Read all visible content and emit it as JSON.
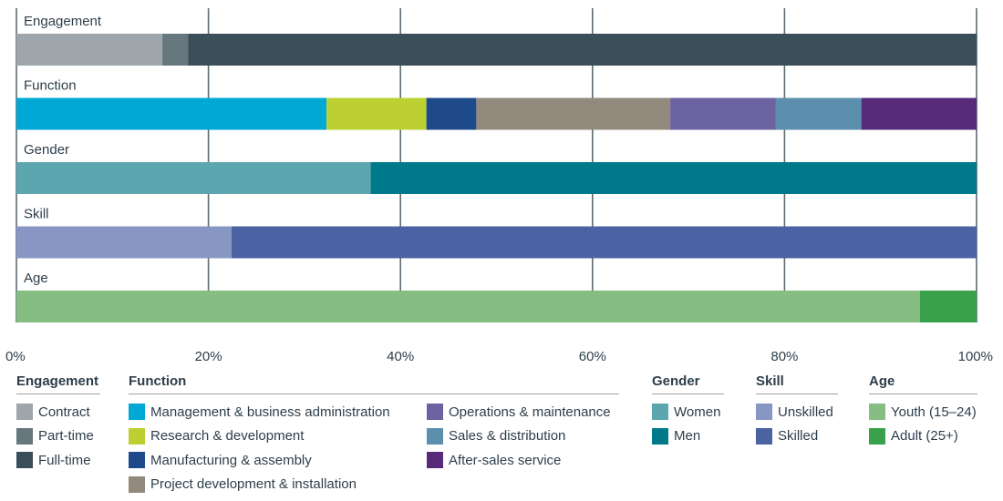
{
  "chart_data": {
    "type": "bar",
    "orientation": "horizontal",
    "stacked": true,
    "xlim": [
      0,
      100
    ],
    "xticks": [
      "0%",
      "20%",
      "40%",
      "60%",
      "80%",
      "100%"
    ],
    "grid": true,
    "legend_position": "bottom",
    "rows": [
      {
        "label": "Engagement",
        "segments": [
          {
            "name": "Contract",
            "value": 15.2,
            "color": "#9ea6ab"
          },
          {
            "name": "Part-time",
            "value": 2.7,
            "color": "#66777e"
          },
          {
            "name": "Full-time",
            "value": 82.1,
            "color": "#3b4f5b"
          }
        ]
      },
      {
        "label": "Function",
        "segments": [
          {
            "name": "Management & business administration",
            "value": 32.3,
            "color": "#00a8d6"
          },
          {
            "name": "Research & development",
            "value": 10.4,
            "color": "#bcd032"
          },
          {
            "name": "Manufacturing & assembly",
            "value": 5.2,
            "color": "#1f4a8a"
          },
          {
            "name": "Project development & installation",
            "value": 20.2,
            "color": "#938a7e"
          },
          {
            "name": "Operations & maintenance",
            "value": 11.0,
            "color": "#6b62a2"
          },
          {
            "name": "Sales & distribution",
            "value": 8.9,
            "color": "#5b8fad"
          },
          {
            "name": "After-sales service",
            "value": 12.0,
            "color": "#572a7a"
          }
        ]
      },
      {
        "label": "Gender",
        "segments": [
          {
            "name": "Women",
            "value": 36.9,
            "color": "#5ca6af"
          },
          {
            "name": "Men",
            "value": 63.1,
            "color": "#007a8a"
          }
        ]
      },
      {
        "label": "Skill",
        "segments": [
          {
            "name": "Unskilled",
            "value": 22.4,
            "color": "#8896c4"
          },
          {
            "name": "Skilled",
            "value": 77.6,
            "color": "#4b63a3"
          }
        ]
      },
      {
        "label": "Age",
        "segments": [
          {
            "name": "Youth (15–24)",
            "value": 94.1,
            "color": "#85bd82"
          },
          {
            "name": "Adult (25+)",
            "value": 5.9,
            "color": "#38a14a"
          }
        ]
      }
    ]
  },
  "legend": {
    "groups": [
      {
        "title": "Engagement",
        "items": [
          "Contract",
          "Part-time",
          "Full-time"
        ]
      },
      {
        "title": "Function",
        "items": [
          "Management & business administration",
          "Research & development",
          "Manufacturing & assembly",
          "Project development & installation",
          "Operations & maintenance",
          "Sales & distribution",
          "After-sales service"
        ]
      },
      {
        "title": "Gender",
        "items": [
          "Women",
          "Men"
        ]
      },
      {
        "title": "Skill",
        "items": [
          "Unskilled",
          "Skilled"
        ]
      },
      {
        "title": "Age",
        "items": [
          "Youth (15–24)",
          "Adult (25+)"
        ]
      }
    ]
  }
}
